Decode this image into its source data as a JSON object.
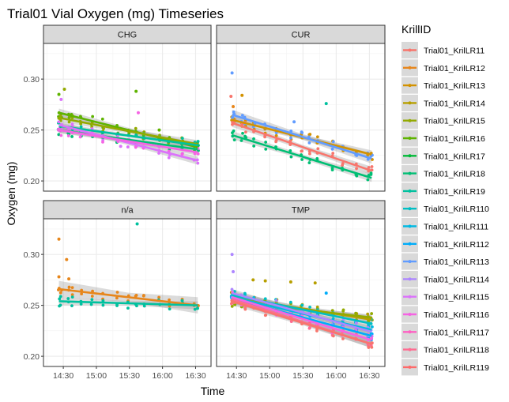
{
  "chart_data": {
    "type": "scatter",
    "title": "Trial01 Vial Oxygen (mg) Timeseries",
    "xlabel": "Time",
    "ylabel": "Oxygen (mg)",
    "x_ticks": [
      "14:30",
      "15:00",
      "15:30",
      "16:00",
      "16:30"
    ],
    "x_tick_values": [
      870,
      900,
      930,
      960,
      990
    ],
    "y_ticks": [
      0.2,
      0.25,
      0.3
    ],
    "xlim": [
      852,
      1004
    ],
    "ylim": [
      0.19,
      0.335
    ],
    "grid": true,
    "legend_position": "right",
    "legend_title": "KrillID",
    "series": [
      {
        "name": "Trial01_KrilLR11",
        "color": "#F8766D"
      },
      {
        "name": "Trial01_KrilLR12",
        "color": "#E7861B"
      },
      {
        "name": "Trial01_KrilLR13",
        "color": "#D39200"
      },
      {
        "name": "Trial01_KrilLR14",
        "color": "#B79F00"
      },
      {
        "name": "Trial01_KrilLR15",
        "color": "#93AA00"
      },
      {
        "name": "Trial01_KrilLR16",
        "color": "#5EB300"
      },
      {
        "name": "Trial01_KrilLR17",
        "color": "#00BA38"
      },
      {
        "name": "Trial01_KrilLR18",
        "color": "#00BF74"
      },
      {
        "name": "Trial01_KrilLR19",
        "color": "#00C19F"
      },
      {
        "name": "Trial01_KrilLR110",
        "color": "#00BFC4"
      },
      {
        "name": "Trial01_KrilLR111",
        "color": "#00B9E3"
      },
      {
        "name": "Trial01_KrilLR112",
        "color": "#00ADFA"
      },
      {
        "name": "Trial01_KrilLR113",
        "color": "#619CFF"
      },
      {
        "name": "Trial01_KrilLR114",
        "color": "#AE87FF"
      },
      {
        "name": "Trial01_KrilLR115",
        "color": "#DB72FB"
      },
      {
        "name": "Trial01_KrilLR116",
        "color": "#F564E3"
      },
      {
        "name": "Trial01_KrilLR117",
        "color": "#FF61C3"
      },
      {
        "name": "Trial01_KrilLR118",
        "color": "#FF6C91"
      },
      {
        "name": "Trial01_KrilLR119",
        "color": "#FF6A6A"
      }
    ],
    "panels": [
      {
        "label": "CHG",
        "fits": [
          {
            "series": 5,
            "y_start": 0.267,
            "y_end": 0.233,
            "band": 0.004
          },
          {
            "series": 4,
            "y_start": 0.262,
            "y_end": 0.236,
            "band": 0.004
          },
          {
            "series": 8,
            "y_start": 0.254,
            "y_end": 0.235,
            "band": 0.003
          },
          {
            "series": 7,
            "y_start": 0.25,
            "y_end": 0.231,
            "band": 0.003
          },
          {
            "series": 14,
            "y_start": 0.255,
            "y_end": 0.22,
            "band": 0.004
          },
          {
            "series": 15,
            "y_start": 0.25,
            "y_end": 0.228,
            "band": 0.003
          }
        ],
        "outliers": [
          {
            "x": 866,
            "y": 0.285,
            "series": 5
          },
          {
            "x": 871,
            "y": 0.29,
            "series": 4
          },
          {
            "x": 868,
            "y": 0.28,
            "series": 14
          },
          {
            "x": 936,
            "y": 0.288,
            "series": 5
          },
          {
            "x": 938,
            "y": 0.267,
            "series": 15
          },
          {
            "x": 957,
            "y": 0.25,
            "series": 5
          },
          {
            "x": 922,
            "y": 0.234,
            "series": 14
          }
        ]
      },
      {
        "label": "CUR",
        "fits": [
          {
            "series": 2,
            "y_start": 0.26,
            "y_end": 0.226,
            "band": 0.004
          },
          {
            "series": 12,
            "y_start": 0.265,
            "y_end": 0.222,
            "band": 0.005
          },
          {
            "series": 0,
            "y_start": 0.257,
            "y_end": 0.21,
            "band": 0.004
          },
          {
            "series": 7,
            "y_start": 0.245,
            "y_end": 0.203,
            "band": 0.004
          }
        ],
        "outliers": [
          {
            "x": 866,
            "y": 0.306,
            "series": 12
          },
          {
            "x": 865,
            "y": 0.283,
            "series": 0
          },
          {
            "x": 875,
            "y": 0.284,
            "series": 2
          },
          {
            "x": 951,
            "y": 0.276,
            "series": 8
          },
          {
            "x": 867,
            "y": 0.273,
            "series": 1
          },
          {
            "x": 922,
            "y": 0.258,
            "series": 12
          }
        ]
      },
      {
        "label": "n/a",
        "fits": [
          {
            "series": 1,
            "y_start": 0.266,
            "y_end": 0.25,
            "band": 0.008
          },
          {
            "series": 8,
            "y_start": 0.254,
            "y_end": 0.25,
            "band": 0.004
          }
        ],
        "outliers": [
          {
            "x": 866,
            "y": 0.315,
            "series": 1
          },
          {
            "x": 873,
            "y": 0.295,
            "series": 1
          },
          {
            "x": 937,
            "y": 0.33,
            "series": 8
          },
          {
            "x": 875,
            "y": 0.276,
            "series": 1
          },
          {
            "x": 866,
            "y": 0.278,
            "series": 1
          }
        ]
      },
      {
        "label": "TMP",
        "fits": [
          {
            "series": 3,
            "y_start": 0.258,
            "y_end": 0.236,
            "band": 0.004
          },
          {
            "series": 4,
            "y_start": 0.254,
            "y_end": 0.238,
            "band": 0.003
          },
          {
            "series": 9,
            "y_start": 0.26,
            "y_end": 0.232,
            "band": 0.004
          },
          {
            "series": 10,
            "y_start": 0.258,
            "y_end": 0.226,
            "band": 0.004
          },
          {
            "series": 11,
            "y_start": 0.257,
            "y_end": 0.22,
            "band": 0.004
          },
          {
            "series": 13,
            "y_start": 0.262,
            "y_end": 0.224,
            "band": 0.004
          },
          {
            "series": 15,
            "y_start": 0.258,
            "y_end": 0.216,
            "band": 0.004
          },
          {
            "series": 17,
            "y_start": 0.256,
            "y_end": 0.212,
            "band": 0.004
          },
          {
            "series": 0,
            "y_start": 0.254,
            "y_end": 0.212,
            "band": 0.004
          }
        ],
        "outliers": [
          {
            "x": 866,
            "y": 0.3,
            "series": 13
          },
          {
            "x": 885,
            "y": 0.275,
            "series": 3
          },
          {
            "x": 896,
            "y": 0.274,
            "series": 3
          },
          {
            "x": 919,
            "y": 0.273,
            "series": 3
          },
          {
            "x": 941,
            "y": 0.272,
            "series": 3
          },
          {
            "x": 951,
            "y": 0.262,
            "series": 11
          },
          {
            "x": 867,
            "y": 0.283,
            "series": 13
          }
        ]
      }
    ]
  }
}
